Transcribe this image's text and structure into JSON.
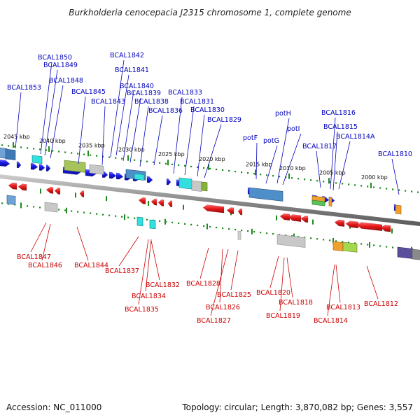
{
  "title": "Burkholderia cenocepacia J2315 chromosome 1, complete genome",
  "accession": "Accession: NC_011000",
  "summary": "Topology: circular; Length: 3,870,082 bp; Genes: 3,557",
  "colors": {
    "forward_label": "#0000bb",
    "reverse_label": "#cc0000",
    "forward_gene": "#1a1ae6",
    "reverse_gene": "#e61a1a",
    "ticks": "#1f8a1f",
    "backbone": "#888888"
  },
  "ticks": [
    {
      "label": "2045 kbp"
    },
    {
      "label": "2040 kbp"
    },
    {
      "label": "2035 kbp"
    },
    {
      "label": "2030 kbp"
    },
    {
      "label": "2025 kbp"
    },
    {
      "label": "2020 kbp"
    },
    {
      "label": "2015 kbp"
    },
    {
      "label": "2010 kbp"
    },
    {
      "label": "2005 kbp"
    },
    {
      "label": "2000 kbp"
    }
  ],
  "forward_labels": [
    {
      "text": "BCAL1853"
    },
    {
      "text": "BCAL1850"
    },
    {
      "text": "BCAL1849"
    },
    {
      "text": "BCAL1848"
    },
    {
      "text": "BCAL1845"
    },
    {
      "text": "BCAL1843"
    },
    {
      "text": "BCAL1842"
    },
    {
      "text": "BCAL1841"
    },
    {
      "text": "BCAL1840"
    },
    {
      "text": "BCAL1839"
    },
    {
      "text": "BCAL1838"
    },
    {
      "text": "BCAL1836"
    },
    {
      "text": "BCAL1833"
    },
    {
      "text": "BCAL1831"
    },
    {
      "text": "BCAL1830"
    },
    {
      "text": "BCAL1829"
    },
    {
      "text": "potF"
    },
    {
      "text": "potG"
    },
    {
      "text": "potH"
    },
    {
      "text": "potI"
    },
    {
      "text": "BCAL1817"
    },
    {
      "text": "BCAL1816"
    },
    {
      "text": "BCAL1815"
    },
    {
      "text": "BCAL1814A"
    },
    {
      "text": "BCAL1810"
    }
  ],
  "reverse_labels": [
    {
      "text": "BCAL1847"
    },
    {
      "text": "BCAL1846"
    },
    {
      "text": "BCAL1844"
    },
    {
      "text": "BCAL1837"
    },
    {
      "text": "BCAL1832"
    },
    {
      "text": "BCAL1834"
    },
    {
      "text": "BCAL1835"
    },
    {
      "text": "BCAL1828"
    },
    {
      "text": "BCAL1826"
    },
    {
      "text": "BCAL1827"
    },
    {
      "text": "BCAL1825"
    },
    {
      "text": "BCAL1820"
    },
    {
      "text": "BCAL1818"
    },
    {
      "text": "BCAL1819"
    },
    {
      "text": "BCAL1813"
    },
    {
      "text": "BCAL1814"
    },
    {
      "text": "BCAL1812"
    }
  ]
}
